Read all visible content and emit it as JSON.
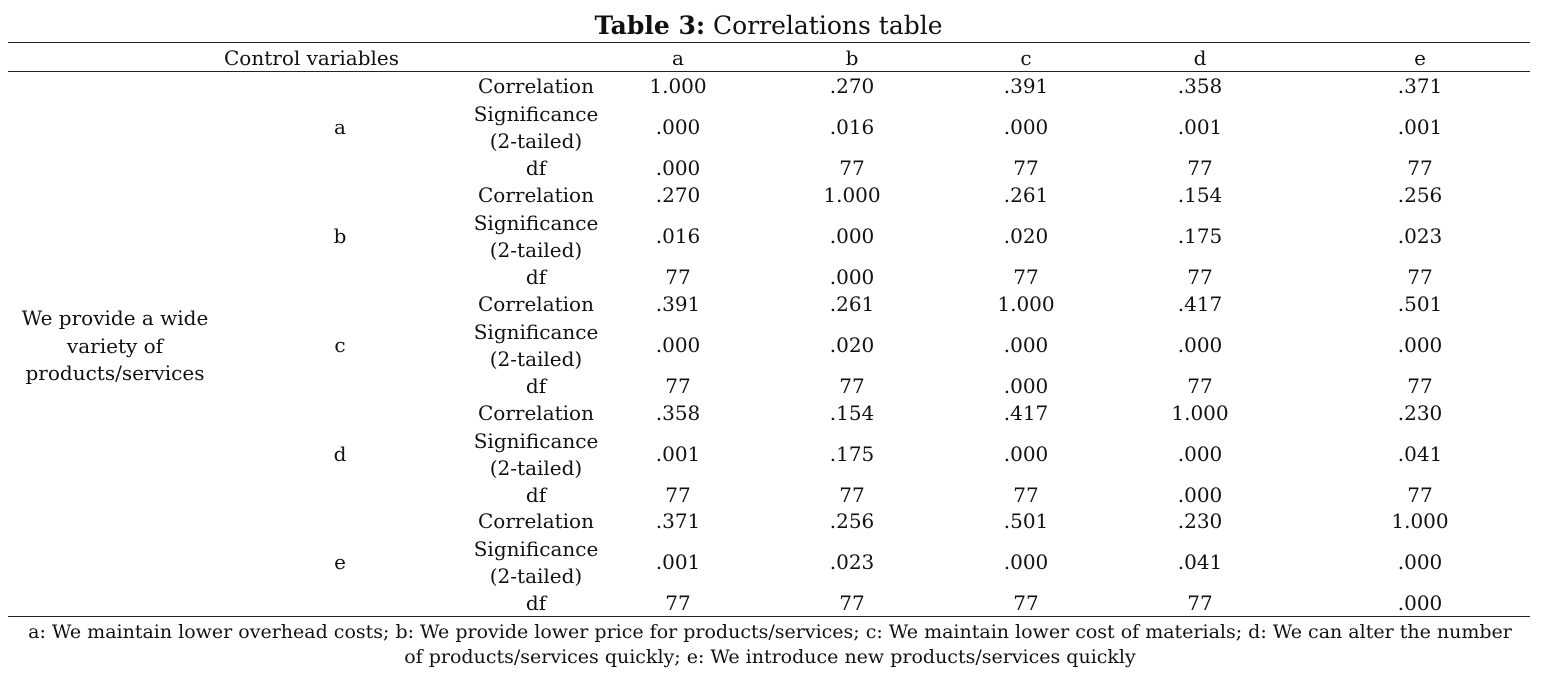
{
  "title": {
    "label": "Table 3:",
    "text": "Correlations table"
  },
  "header": {
    "control_variables": "Control variables",
    "columns": [
      "a",
      "b",
      "c",
      "d",
      "e"
    ]
  },
  "row_header": "We provide a wide variety of products/services",
  "stat_labels": {
    "correlation": "Correlation",
    "significance_line1": "Significance",
    "significance_line2": "(2-tailed)",
    "df": "df"
  },
  "groups": [
    {
      "name": "a",
      "correlation": [
        "1.000",
        ".270",
        ".391",
        ".358",
        ".371"
      ],
      "significance": [
        ".000",
        ".016",
        ".000",
        ".001",
        ".001"
      ],
      "df": [
        ".000",
        "77",
        "77",
        "77",
        "77"
      ]
    },
    {
      "name": "b",
      "correlation": [
        ".270",
        "1.000",
        ".261",
        ".154",
        ".256"
      ],
      "significance": [
        ".016",
        ".000",
        ".020",
        ".175",
        ".023"
      ],
      "df": [
        "77",
        ".000",
        "77",
        "77",
        "77"
      ]
    },
    {
      "name": "c",
      "correlation": [
        ".391",
        ".261",
        "1.000",
        ".417",
        ".501"
      ],
      "significance": [
        ".000",
        ".020",
        ".000",
        ".000",
        ".000"
      ],
      "df": [
        "77",
        "77",
        ".000",
        "77",
        "77"
      ]
    },
    {
      "name": "d",
      "correlation": [
        ".358",
        ".154",
        ".417",
        "1.000",
        ".230"
      ],
      "significance": [
        ".001",
        ".175",
        ".000",
        ".000",
        ".041"
      ],
      "df": [
        "77",
        "77",
        "77",
        ".000",
        "77"
      ]
    },
    {
      "name": "e",
      "correlation": [
        ".371",
        ".256",
        ".501",
        ".230",
        "1.000"
      ],
      "significance": [
        ".001",
        ".023",
        ".000",
        ".041",
        ".000"
      ],
      "df": [
        "77",
        "77",
        "77",
        "77",
        ".000"
      ]
    }
  ],
  "footnote": "a: We maintain lower overhead costs; b: We provide lower price for products/services; c: We maintain lower cost of materials; d: We can alter the number of products/services quickly; e: We introduce new products/services quickly"
}
